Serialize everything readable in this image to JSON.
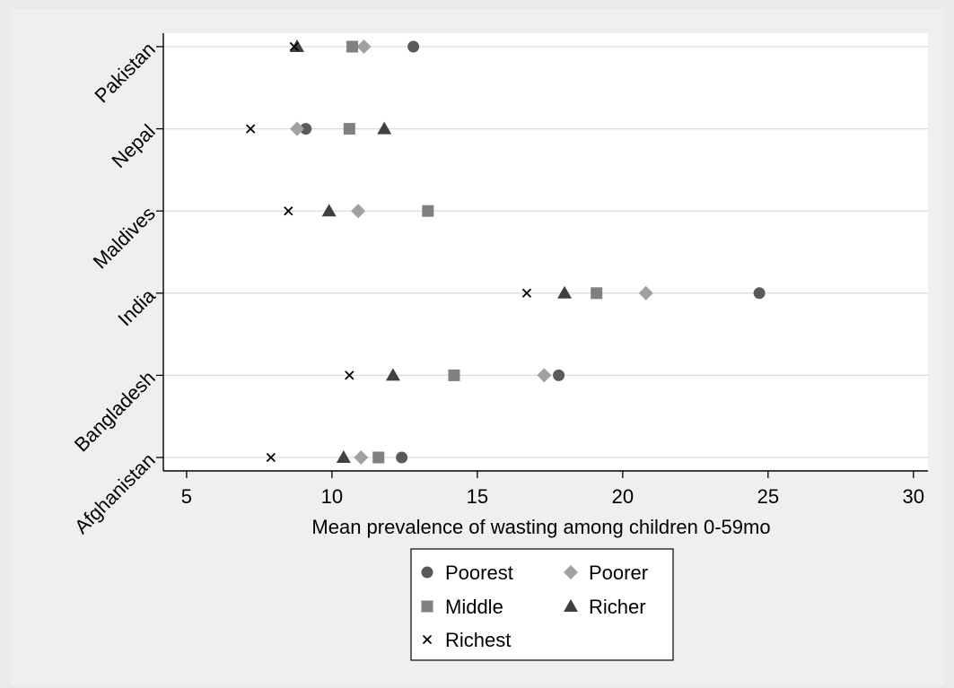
{
  "chart_data": {
    "type": "scatter",
    "title": "",
    "xlabel": "Mean prevalence of wasting among children 0-59mo",
    "ylabel": "",
    "xlim": [
      4.2,
      30.5
    ],
    "xticks": [
      5,
      10,
      15,
      20,
      25,
      30
    ],
    "xtick_labels": [
      "5",
      "10",
      "15",
      "20",
      "25",
      "30"
    ],
    "categories": [
      "Afghanistan",
      "Bangladesh",
      "India",
      "Maldives",
      "Nepal",
      "Pakistan"
    ],
    "grid": true,
    "legend_position": "bottom",
    "series": [
      {
        "name": "Poorest",
        "marker": "circle",
        "color": "#5a5a5a",
        "values": [
          12.4,
          17.8,
          24.7,
          null,
          9.1,
          12.8
        ]
      },
      {
        "name": "Poorer",
        "marker": "diamond",
        "color": "#a0a0a0",
        "values": [
          11.0,
          17.3,
          20.8,
          10.9,
          8.8,
          11.1
        ]
      },
      {
        "name": "Middle",
        "marker": "square",
        "color": "#808080",
        "values": [
          11.6,
          14.2,
          19.1,
          13.3,
          10.6,
          10.7
        ]
      },
      {
        "name": "Richer",
        "marker": "triangle",
        "color": "#404040",
        "values": [
          10.4,
          12.1,
          18.0,
          9.9,
          11.8,
          8.8
        ]
      },
      {
        "name": "Richest",
        "marker": "x",
        "color": "#000000",
        "values": [
          7.9,
          10.6,
          16.7,
          8.5,
          7.2,
          8.7
        ]
      }
    ]
  }
}
